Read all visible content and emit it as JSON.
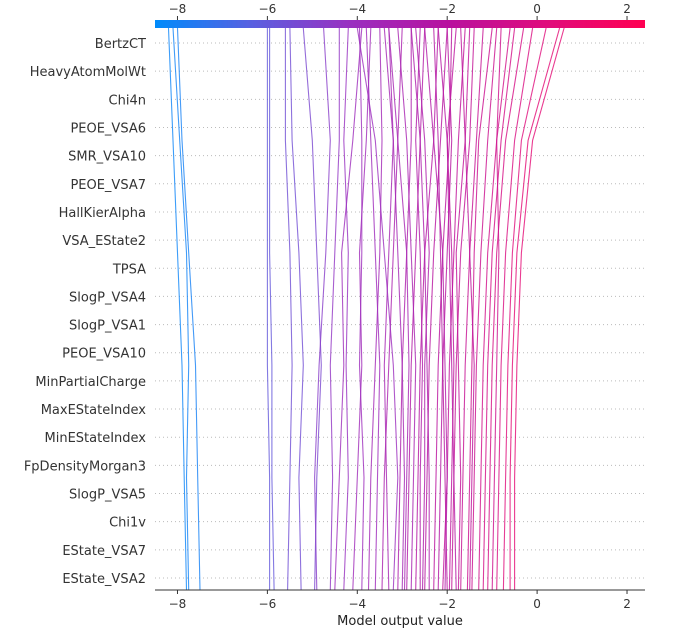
{
  "chart_data": {
    "type": "line",
    "subtype": "shap-decision-plot",
    "xlabel": "Model output value",
    "xlim": [
      -8.5,
      2.4
    ],
    "xticks": [
      "−8",
      "−6",
      "−4",
      "−2",
      "0",
      "2"
    ],
    "xtick_values": [
      -8,
      -6,
      -4,
      -2,
      0,
      2
    ],
    "features": [
      "BertzCT",
      "HeavyAtomMolWt",
      "Chi4n",
      "PEOE_VSA6",
      "SMR_VSA10",
      "PEOE_VSA7",
      "HallKierAlpha",
      "VSA_EState2",
      "TPSA",
      "SlogP_VSA4",
      "SlogP_VSA1",
      "PEOE_VSA10",
      "MinPartialCharge",
      "MaxEStateIndex",
      "MinEStateIndex",
      "FpDensityMorgan3",
      "SlogP_VSA5",
      "Chi1v",
      "EState_VSA7",
      "EState_VSA2"
    ],
    "colorbar": {
      "range": [
        -8.5,
        2.4
      ],
      "colors": [
        "#008bfb",
        "#5a5fe0",
        "#9a30c0",
        "#b8109e",
        "#e00c7c",
        "#ff0051"
      ]
    },
    "grid": "dotted horizontal",
    "series_note_points": "cumulative output after 0,4,8,12,16,20 features (bottom to top)",
    "series": [
      [
        -7.8,
        -7.85,
        -7.9,
        -8.0,
        -8.1,
        -8.2
      ],
      [
        -7.75,
        -7.8,
        -7.75,
        -7.8,
        -7.95,
        -8.1
      ],
      [
        -7.5,
        -7.55,
        -7.6,
        -7.75,
        -7.9,
        -8.0
      ],
      [
        -5.95,
        -5.95,
        -6.0,
        -6.0,
        -6.0,
        -6.0
      ],
      [
        -5.85,
        -5.9,
        -5.9,
        -5.95,
        -5.95,
        -5.95
      ],
      [
        -5.55,
        -5.5,
        -5.45,
        -5.5,
        -5.6,
        -5.6
      ],
      [
        -5.25,
        -5.3,
        -5.2,
        -5.3,
        -5.45,
        -5.5
      ],
      [
        -4.95,
        -4.9,
        -4.8,
        -4.9,
        -5.0,
        -5.2
      ],
      [
        -4.9,
        -4.95,
        -4.85,
        -4.7,
        -4.6,
        -4.75
      ],
      [
        -4.6,
        -4.55,
        -4.6,
        -4.5,
        -4.4,
        -4.4
      ],
      [
        -4.5,
        -4.4,
        -4.3,
        -4.35,
        -4.1,
        -3.9
      ],
      [
        -4.3,
        -4.2,
        -4.25,
        -4.2,
        -4.3,
        -4.2
      ],
      [
        -4.1,
        -4.0,
        -3.9,
        -3.95,
        -3.8,
        -3.7
      ],
      [
        -3.9,
        -3.85,
        -3.95,
        -3.9,
        -3.9,
        -3.95
      ],
      [
        -3.75,
        -3.7,
        -3.6,
        -3.5,
        -3.45,
        -3.5
      ],
      [
        -3.6,
        -3.55,
        -3.5,
        -3.6,
        -3.7,
        -3.8
      ],
      [
        -3.45,
        -3.4,
        -3.3,
        -3.2,
        -3.1,
        -3.0
      ],
      [
        -3.3,
        -3.35,
        -3.4,
        -3.3,
        -3.2,
        -3.3
      ],
      [
        -3.1,
        -3.05,
        -3.0,
        -2.9,
        -2.8,
        -2.8
      ],
      [
        -3.0,
        -2.95,
        -3.0,
        -3.1,
        -3.2,
        -3.4
      ],
      [
        -2.9,
        -2.85,
        -2.8,
        -2.7,
        -2.6,
        -2.5
      ],
      [
        -2.8,
        -2.75,
        -2.7,
        -2.8,
        -2.9,
        -3.1
      ],
      [
        -2.7,
        -2.65,
        -2.6,
        -2.5,
        -2.3,
        -2.2
      ],
      [
        -2.6,
        -2.6,
        -2.55,
        -2.6,
        -2.7,
        -2.6
      ],
      [
        -2.5,
        -2.45,
        -2.4,
        -2.3,
        -2.15,
        -2.0
      ],
      [
        -2.4,
        -2.4,
        -2.45,
        -2.5,
        -2.6,
        -2.8
      ],
      [
        -2.3,
        -2.25,
        -2.2,
        -2.1,
        -1.95,
        -1.9
      ],
      [
        -2.2,
        -2.15,
        -2.1,
        -2.15,
        -2.2,
        -2.3
      ],
      [
        -2.1,
        -2.0,
        -1.95,
        -1.85,
        -1.75,
        -1.6
      ],
      [
        -2.0,
        -2.05,
        -2.1,
        -2.0,
        -1.9,
        -2.0
      ],
      [
        -1.9,
        -1.85,
        -1.8,
        -1.7,
        -1.5,
        -1.4
      ],
      [
        -1.8,
        -1.85,
        -1.9,
        -1.95,
        -2.0,
        -2.2
      ],
      [
        -1.7,
        -1.65,
        -1.6,
        -1.5,
        -1.35,
        -1.2
      ],
      [
        -1.55,
        -1.5,
        -1.45,
        -1.4,
        -1.3,
        -1.0
      ],
      [
        -1.45,
        -1.4,
        -1.35,
        -1.25,
        -1.1,
        -0.9
      ],
      [
        -1.3,
        -1.25,
        -1.2,
        -1.1,
        -0.9,
        -0.6
      ],
      [
        -1.2,
        -1.15,
        -1.1,
        -1.0,
        -0.8,
        -0.5
      ],
      [
        -1.1,
        -1.05,
        -1.0,
        -0.9,
        -0.7,
        -0.3
      ],
      [
        -0.9,
        -0.85,
        -0.8,
        -0.7,
        -0.5,
        -0.1
      ],
      [
        -0.75,
        -0.7,
        -0.65,
        -0.55,
        -0.35,
        0.2
      ],
      [
        -0.6,
        -0.6,
        -0.55,
        -0.45,
        -0.2,
        0.5
      ],
      [
        -0.5,
        -0.5,
        -0.45,
        -0.35,
        -0.1,
        0.6
      ],
      [
        -3.2,
        -3.1,
        -3.2,
        -3.4,
        -3.6,
        -4.0
      ],
      [
        -2.95,
        -2.9,
        -2.85,
        -2.9,
        -3.1,
        -3.3
      ],
      [
        -1.75,
        -1.7,
        -1.75,
        -1.8,
        -1.6,
        -1.5
      ],
      [
        -2.05,
        -2.0,
        -2.05,
        -2.1,
        -2.3,
        -2.5
      ],
      [
        -1.95,
        -1.9,
        -1.85,
        -1.9,
        -2.0,
        -1.8
      ],
      [
        -2.55,
        -2.5,
        -2.5,
        -2.4,
        -2.5,
        -2.7
      ],
      [
        -1.5,
        -1.45,
        -1.4,
        -1.5,
        -1.6,
        -1.7
      ],
      [
        -1.0,
        -0.95,
        -0.9,
        -0.85,
        -0.9,
        -0.8
      ]
    ]
  }
}
